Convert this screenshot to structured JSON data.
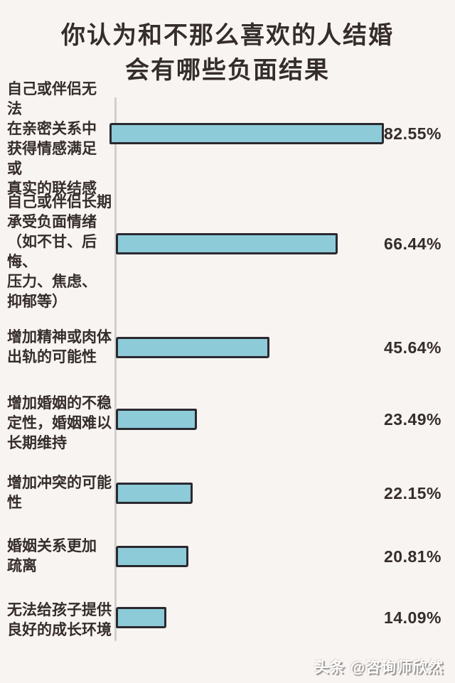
{
  "title": {
    "line1": "你认为和不那么喜欢的人结婚",
    "line2": "会有哪些负面结果"
  },
  "watermark": "头条 @咨询师欣然",
  "chart_data": {
    "type": "bar",
    "orientation": "horizontal",
    "title": "你认为和不那么喜欢的人结婚会有哪些负面结果",
    "categories": [
      "自己或伴侣无法在亲密关系中获得情感满足或真实的联结感",
      "自己或伴侣长期承受负面情绪（如不甘、后悔、压力、焦虑、抑郁等）",
      "增加精神或肉体出轨的可能性",
      "增加婚姻的不稳定性，婚姻难以长期维持",
      "增加冲突的可能性",
      "婚姻关系更加疏离",
      "无法给孩子提供良好的成长环境"
    ],
    "label_lines": [
      "自己或伴侣无法\n在亲密关系中\n获得情感满足或\n真实的联结感",
      "自己或伴侣长期\n承受负面情绪\n（如不甘、后悔、\n压力、焦虑、\n抑郁等）",
      "增加精神或肉体\n出轨的可能性",
      "增加婚姻的不稳\n定性，婚姻难以\n长期维持",
      "增加冲突的可能\n性",
      "婚姻关系更加\n疏离",
      "无法给孩子提供\n良好的成长环境"
    ],
    "values": [
      82.55,
      66.44,
      45.64,
      23.49,
      22.15,
      20.81,
      14.09
    ],
    "data_labels": [
      "82.55%",
      "66.44%",
      "45.64%",
      "23.49%",
      "22.15%",
      "20.81%",
      "14.09%"
    ],
    "xlim": [
      0,
      100
    ],
    "grid": false,
    "legend": false,
    "bar_color": "#8ecbd8",
    "bar_border_color": "#2b2930",
    "axis_color": "#d3cfce",
    "background_color": "#f8f4f1",
    "text_color": "#352c2c"
  }
}
